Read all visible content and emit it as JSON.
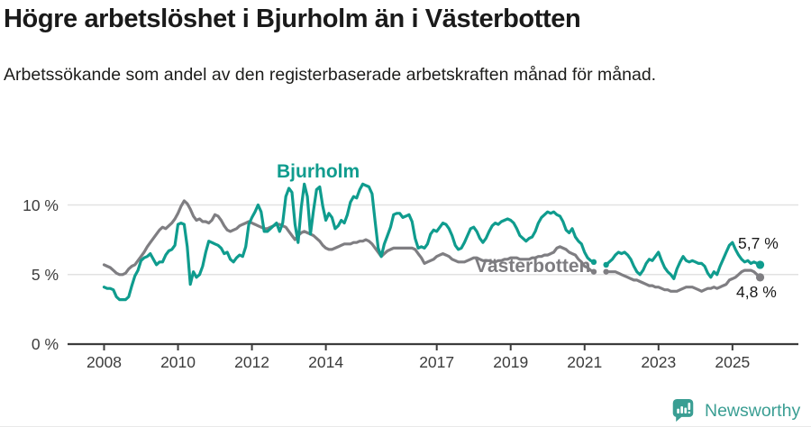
{
  "header": {
    "title": "Högre arbetslöshet i Bjurholm än i Västerbotten",
    "subtitle": "Arbetssökande som andel av den registerbaserade arbetskraften månad för månad."
  },
  "chart_data": {
    "type": "line",
    "unit": "percent",
    "frequency": "monthly",
    "x_start": "2008-01",
    "x_end": "2025-10",
    "note_gap": "data gap 2021-05 to 2021-07 shown as break in lines",
    "grid": "horizontal only",
    "y_axis": {
      "range": [
        0,
        12
      ],
      "ticks": [
        0,
        5,
        10
      ],
      "tick_labels": [
        "0 %",
        "5 %",
        "10 %"
      ]
    },
    "x_axis": {
      "tick_years": [
        2008,
        2010,
        2012,
        2014,
        2017,
        2019,
        2021,
        2023,
        2025
      ]
    },
    "series": [
      {
        "name": "Bjurholm",
        "color": "#0f9c8e",
        "end_label": "5,7 %",
        "values": [
          4.1,
          4.0,
          4.0,
          3.9,
          3.4,
          3.2,
          3.2,
          3.2,
          3.4,
          4.2,
          4.9,
          5.3,
          6.0,
          6.2,
          6.3,
          6.5,
          6.1,
          5.7,
          5.9,
          5.9,
          6.4,
          6.7,
          6.8,
          7.1,
          8.6,
          8.7,
          8.6,
          7.0,
          4.3,
          5.2,
          4.8,
          5.0,
          5.6,
          6.6,
          7.4,
          7.3,
          7.2,
          7.1,
          6.9,
          6.5,
          6.6,
          6.1,
          5.9,
          6.2,
          6.4,
          6.3,
          7.0,
          8.6,
          9.1,
          9.5,
          10.0,
          9.5,
          8.1,
          8.1,
          8.3,
          8.5,
          8.7,
          8.1,
          8.7,
          10.6,
          11.2,
          10.9,
          8.6,
          7.3,
          9.8,
          11.5,
          10.6,
          7.9,
          9.6,
          11.1,
          11.3,
          9.9,
          8.9,
          9.4,
          9.1,
          8.3,
          8.5,
          8.9,
          8.7,
          9.3,
          10.2,
          10.6,
          10.5,
          11.1,
          11.5,
          11.4,
          11.3,
          10.8,
          8.8,
          6.9,
          6.3,
          7.2,
          7.8,
          8.4,
          9.3,
          9.4,
          9.4,
          9.1,
          9.2,
          9.3,
          8.8,
          7.6,
          6.9,
          7.0,
          6.9,
          7.2,
          7.9,
          8.2,
          8.1,
          8.4,
          8.7,
          8.6,
          8.3,
          7.8,
          7.1,
          6.8,
          6.9,
          7.3,
          7.8,
          8.3,
          8.4,
          8.1,
          7.6,
          7.3,
          7.6,
          8.1,
          8.5,
          8.7,
          8.6,
          8.8,
          8.9,
          9.0,
          8.9,
          8.7,
          8.3,
          7.8,
          7.6,
          7.4,
          7.6,
          7.7,
          8.1,
          8.7,
          9.1,
          9.3,
          9.5,
          9.4,
          9.5,
          9.3,
          9.2,
          8.8,
          8.2,
          8.0,
          8.3,
          7.7,
          7.4,
          7.2,
          6.6,
          6.2,
          6.0,
          5.9,
          null,
          null,
          null,
          5.7,
          5.9,
          6.1,
          6.4,
          6.6,
          6.5,
          6.6,
          6.4,
          6.1,
          5.6,
          5.2,
          5.0,
          5.3,
          5.8,
          6.1,
          6.0,
          6.3,
          6.6,
          6.0,
          5.5,
          5.2,
          5.0,
          4.7,
          5.4,
          5.9,
          6.3,
          6.0,
          5.9,
          6.0,
          5.9,
          5.8,
          5.8,
          5.6,
          5.1,
          4.8,
          5.2,
          5.0,
          5.6,
          6.1,
          6.6,
          7.1,
          7.3,
          6.8,
          6.4,
          6.1,
          5.9,
          6.0,
          5.8,
          5.9,
          5.8,
          5.7
        ]
      },
      {
        "name": "Västerbotten",
        "color": "#7f7e82",
        "end_label": "4,8 %",
        "values": [
          5.7,
          5.6,
          5.5,
          5.3,
          5.1,
          5.0,
          5.0,
          5.1,
          5.4,
          5.6,
          5.7,
          6.0,
          6.3,
          6.6,
          7.0,
          7.3,
          7.6,
          7.9,
          8.2,
          8.4,
          8.3,
          8.5,
          8.7,
          9.0,
          9.4,
          9.9,
          10.3,
          10.1,
          9.7,
          9.2,
          8.9,
          9.0,
          8.8,
          8.8,
          8.7,
          8.9,
          9.3,
          9.2,
          8.9,
          8.5,
          8.2,
          8.1,
          8.2,
          8.3,
          8.5,
          8.6,
          8.7,
          8.8,
          8.7,
          8.6,
          8.5,
          8.4,
          8.3,
          8.3,
          8.4,
          8.5,
          8.6,
          8.6,
          8.5,
          8.4,
          8.1,
          7.8,
          7.5,
          7.8,
          8.0,
          8.1,
          8.0,
          7.9,
          7.8,
          7.6,
          7.4,
          7.1,
          6.9,
          6.8,
          6.8,
          6.9,
          7.0,
          7.1,
          7.2,
          7.2,
          7.2,
          7.3,
          7.3,
          7.4,
          7.4,
          7.5,
          7.4,
          7.2,
          6.9,
          6.6,
          6.3,
          6.5,
          6.7,
          6.8,
          6.9,
          6.9,
          6.9,
          6.9,
          6.9,
          6.9,
          6.9,
          6.8,
          6.5,
          6.2,
          5.8,
          5.9,
          6.0,
          6.1,
          6.3,
          6.4,
          6.5,
          6.4,
          6.3,
          6.1,
          6.0,
          5.9,
          5.9,
          5.9,
          6.0,
          6.1,
          6.2,
          6.2,
          6.1,
          6.0,
          6.0,
          6.0,
          5.9,
          5.9,
          6.0,
          6.0,
          6.1,
          6.1,
          6.2,
          6.2,
          6.2,
          6.1,
          6.1,
          6.1,
          6.1,
          6.2,
          6.2,
          6.3,
          6.3,
          6.4,
          6.4,
          6.5,
          6.6,
          6.9,
          7.0,
          6.9,
          6.8,
          6.6,
          6.5,
          6.4,
          6.1,
          5.9,
          5.6,
          5.5,
          5.3,
          5.2,
          null,
          null,
          null,
          5.2,
          5.2,
          5.2,
          5.2,
          5.1,
          5.0,
          4.9,
          4.8,
          4.7,
          4.6,
          4.6,
          4.5,
          4.4,
          4.3,
          4.2,
          4.2,
          4.1,
          4.1,
          4.0,
          3.9,
          3.9,
          3.8,
          3.8,
          3.8,
          3.9,
          4.0,
          4.1,
          4.1,
          4.1,
          4.0,
          3.9,
          3.8,
          3.9,
          4.0,
          4.0,
          4.1,
          4.0,
          4.1,
          4.2,
          4.3,
          4.6,
          4.7,
          4.8,
          5.0,
          5.2,
          5.3,
          5.3,
          5.3,
          5.2,
          5.0,
          4.8
        ]
      }
    ]
  },
  "footer": {
    "brand": "Newsworthy"
  }
}
